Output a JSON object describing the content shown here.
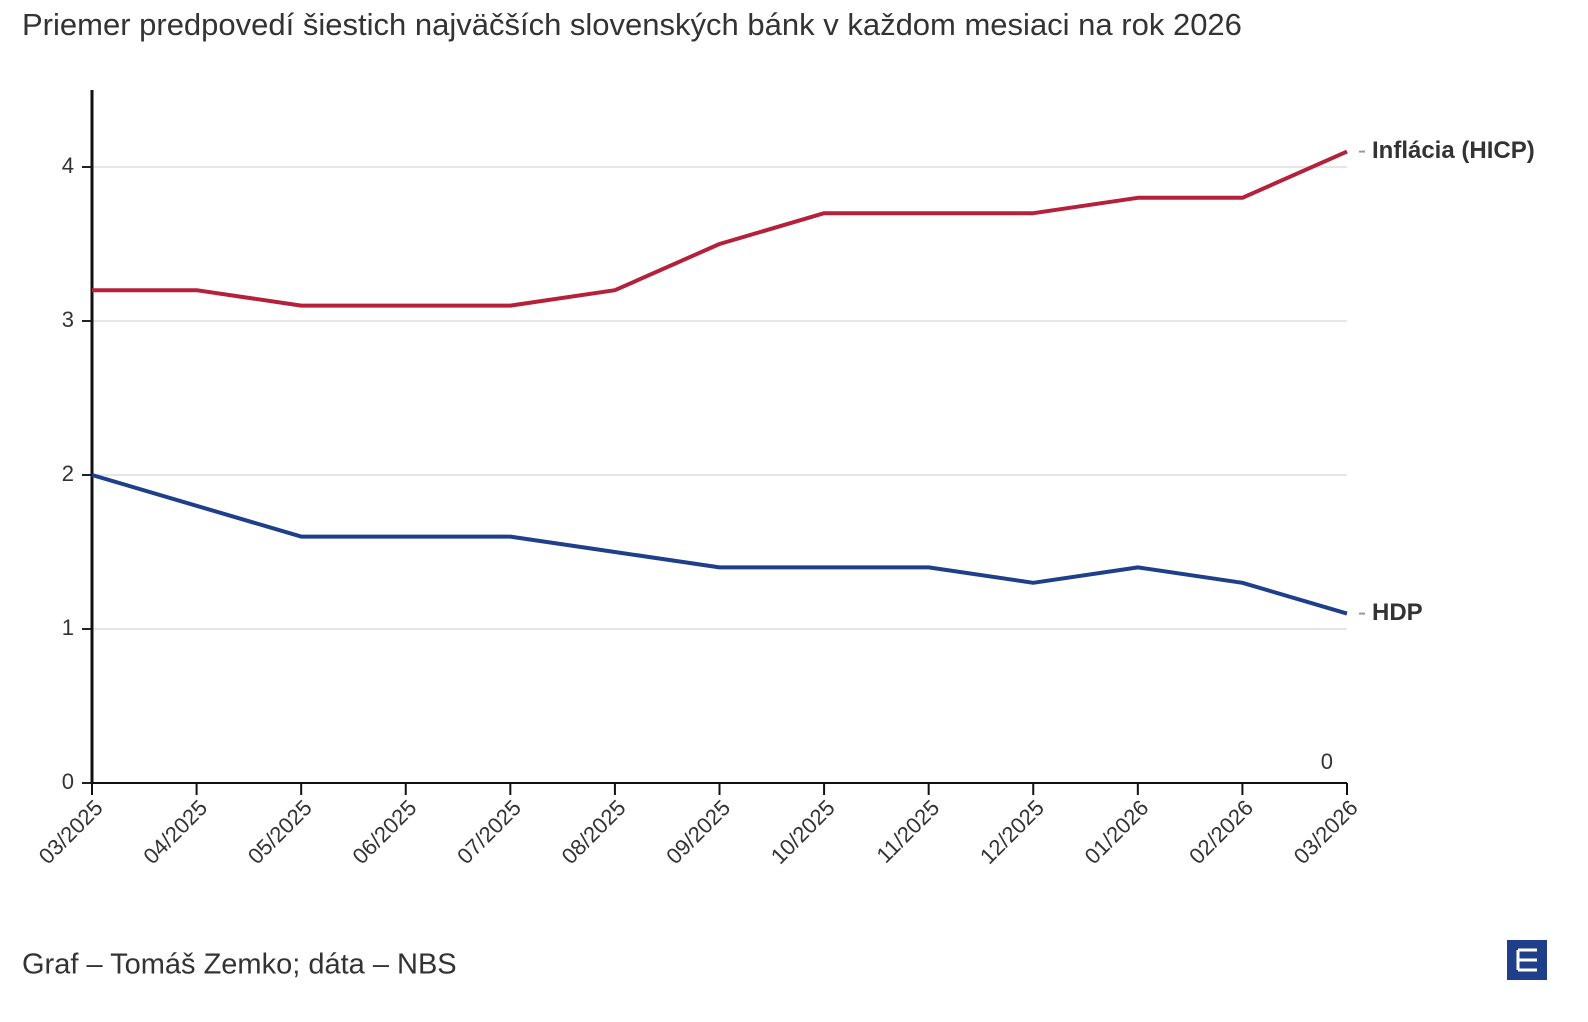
{
  "chart_data": {
    "type": "line",
    "subtitle": "Priemer predpovedí šiestich najväčších slovenských bánk v každom mesiaci na rok 2026",
    "categories": [
      "03/2025",
      "04/2025",
      "05/2025",
      "06/2025",
      "07/2025",
      "08/2025",
      "09/2025",
      "10/2025",
      "11/2025",
      "12/2025",
      "01/2026",
      "02/2026",
      "03/2026"
    ],
    "series": [
      {
        "name": "Inflácia (HICP)",
        "color": "#b5203a",
        "values": [
          3.2,
          3.2,
          3.1,
          3.1,
          3.1,
          3.2,
          3.5,
          3.7,
          3.7,
          3.7,
          3.8,
          3.8,
          4.1
        ]
      },
      {
        "name": "HDP",
        "color": "#1f3f8a",
        "values": [
          2.0,
          1.8,
          1.6,
          1.6,
          1.6,
          1.5,
          1.4,
          1.4,
          1.4,
          1.3,
          1.4,
          1.3,
          1.1
        ]
      }
    ],
    "ylim": [
      0,
      4.5
    ],
    "yticks": [
      0,
      1,
      2,
      3,
      4
    ],
    "grid": true,
    "baseline_label": "0",
    "source": "Graf – Tomáš Zemko; dáta – NBS"
  }
}
